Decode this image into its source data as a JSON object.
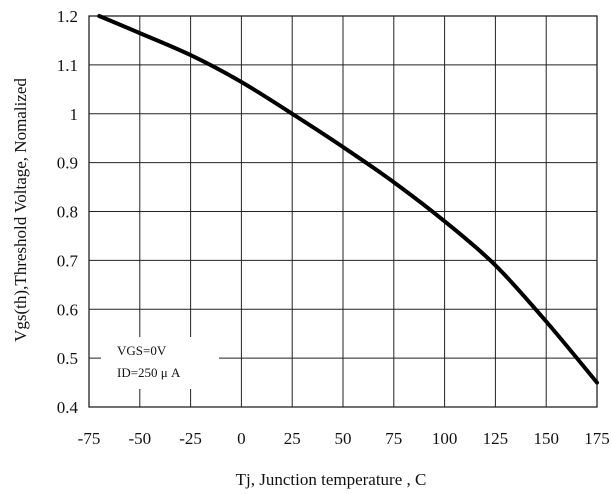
{
  "chart_data": {
    "type": "line",
    "title": "",
    "xlabel": "Tj, Junction temperature , C",
    "ylabel": "Vgs(th),Threshold Voltage, Nomalized",
    "xlim": [
      -75,
      175
    ],
    "ylim": [
      0.4,
      1.2
    ],
    "x_ticks": [
      -75,
      -50,
      -25,
      0,
      25,
      50,
      75,
      100,
      125,
      150,
      175
    ],
    "y_ticks": [
      0.4,
      0.5,
      0.6,
      0.7,
      0.8,
      0.9,
      1.0,
      1.1,
      1.2
    ],
    "x_tick_labels": [
      "-75",
      "-50",
      "-25",
      "0",
      "25",
      "50",
      "75",
      "100",
      "125",
      "150",
      "175"
    ],
    "y_tick_labels": [
      "0.4",
      "0.5",
      "0.6",
      "0.7",
      "0.8",
      "0.9",
      "1",
      "1.1",
      "1.2"
    ],
    "grid": true,
    "annotation": [
      "VGS=0V",
      "ID=250 μ A"
    ],
    "series": [
      {
        "x": [
          -70,
          -50,
          -25,
          0,
          25,
          50,
          75,
          100,
          125,
          150,
          175
        ],
        "y": [
          1.2,
          1.165,
          1.12,
          1.065,
          1.0,
          0.932,
          0.86,
          0.78,
          0.69,
          0.575,
          0.45
        ]
      }
    ],
    "colors": {
      "line": "#000000",
      "grid": "#222222",
      "background": "#ffffff"
    }
  }
}
